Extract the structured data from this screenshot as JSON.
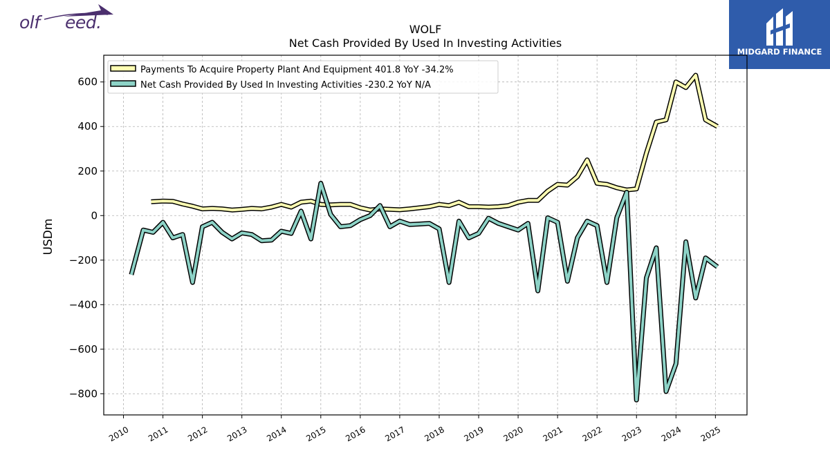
{
  "logo_left": {
    "part1": "olf",
    "part2": "eed."
  },
  "logo_right": {
    "text": "MIDGARD FINANCE"
  },
  "chart_data": {
    "type": "line",
    "title": "WOLF",
    "subtitle": "Net Cash Provided By Used In Investing Activities",
    "ylabel": "USDm",
    "ylim": [
      -895,
      720
    ],
    "xlim": [
      2009.5,
      2025.8
    ],
    "yticks": [
      600,
      400,
      200,
      0,
      -200,
      -400,
      -600,
      -800
    ],
    "ytick_labels": [
      "600",
      "400",
      "200",
      "0",
      "−200",
      "−400",
      "−600",
      "−800"
    ],
    "xticks": [
      2010,
      2011,
      2012,
      2013,
      2014,
      2015,
      2016,
      2017,
      2018,
      2019,
      2020,
      2021,
      2022,
      2023,
      2024,
      2025
    ],
    "xtick_labels": [
      "2010",
      "2011",
      "2012",
      "2013",
      "2014",
      "2015",
      "2016",
      "2017",
      "2018",
      "2019",
      "2020",
      "2021",
      "2022",
      "2023",
      "2024",
      "2025"
    ],
    "grid": true,
    "legend_position": "top-left",
    "series": [
      {
        "name": "Payments To Acquire Property Plant And Equipment  401.8 YoY -34.2%",
        "color": "#ffffb3",
        "x": [
          2010.7,
          2011.0,
          2011.25,
          2011.5,
          2011.75,
          2012.0,
          2012.25,
          2012.5,
          2012.75,
          2013.0,
          2013.25,
          2013.5,
          2013.75,
          2014.0,
          2014.25,
          2014.5,
          2014.75,
          2015.0,
          2015.25,
          2015.5,
          2015.75,
          2016.0,
          2016.25,
          2016.5,
          2016.75,
          2017.0,
          2017.25,
          2017.5,
          2017.75,
          2018.0,
          2018.25,
          2018.5,
          2018.75,
          2019.0,
          2019.25,
          2019.5,
          2019.75,
          2020.0,
          2020.25,
          2020.5,
          2020.75,
          2021.0,
          2021.25,
          2021.5,
          2021.75,
          2022.0,
          2022.25,
          2022.5,
          2022.75,
          2023.0,
          2023.25,
          2023.5,
          2023.75,
          2024.0,
          2024.25,
          2024.5,
          2024.75,
          2025.05
        ],
        "values": [
          62,
          65,
          64,
          52,
          42,
          30,
          32,
          30,
          25,
          28,
          32,
          30,
          38,
          50,
          38,
          60,
          65,
          50,
          48,
          50,
          50,
          35,
          25,
          30,
          28,
          26,
          30,
          35,
          40,
          50,
          45,
          60,
          40,
          40,
          38,
          40,
          45,
          60,
          68,
          68,
          110,
          140,
          137,
          175,
          250,
          145,
          140,
          125,
          115,
          120,
          280,
          420,
          430,
          600,
          575,
          630,
          430,
          400
        ]
      },
      {
        "name": "Net Cash Provided By Used In Investing Activities  -230.2 YoY N/A",
        "color": "#8dd3c7",
        "x": [
          2010.2,
          2010.5,
          2010.75,
          2011.0,
          2011.25,
          2011.5,
          2011.75,
          2012.0,
          2012.25,
          2012.5,
          2012.75,
          2013.0,
          2013.25,
          2013.5,
          2013.75,
          2014.0,
          2014.25,
          2014.5,
          2014.75,
          2015.0,
          2015.25,
          2015.5,
          2015.75,
          2016.0,
          2016.25,
          2016.5,
          2016.75,
          2017.0,
          2017.25,
          2017.5,
          2017.75,
          2018.0,
          2018.25,
          2018.5,
          2018.75,
          2019.0,
          2019.25,
          2019.5,
          2019.75,
          2020.0,
          2020.25,
          2020.5,
          2020.75,
          2021.0,
          2021.25,
          2021.5,
          2021.75,
          2022.0,
          2022.25,
          2022.5,
          2022.75,
          2023.0,
          2023.25,
          2023.5,
          2023.75,
          2024.0,
          2024.25,
          2024.5,
          2024.75,
          2025.05
        ],
        "values": [
          -265,
          -65,
          -75,
          -30,
          -100,
          -85,
          -300,
          -50,
          -30,
          -75,
          -105,
          -78,
          -85,
          -113,
          -110,
          -70,
          -80,
          20,
          -105,
          145,
          5,
          -50,
          -45,
          -18,
          0,
          45,
          -50,
          -25,
          -40,
          -38,
          -35,
          -60,
          -300,
          -25,
          -100,
          -80,
          -12,
          -35,
          -50,
          -65,
          -35,
          -338,
          -10,
          -30,
          -295,
          -100,
          -25,
          -45,
          -300,
          -10,
          105,
          -828,
          -280,
          -145,
          -790,
          -665,
          -118,
          -370,
          -190,
          -230
        ]
      }
    ]
  }
}
